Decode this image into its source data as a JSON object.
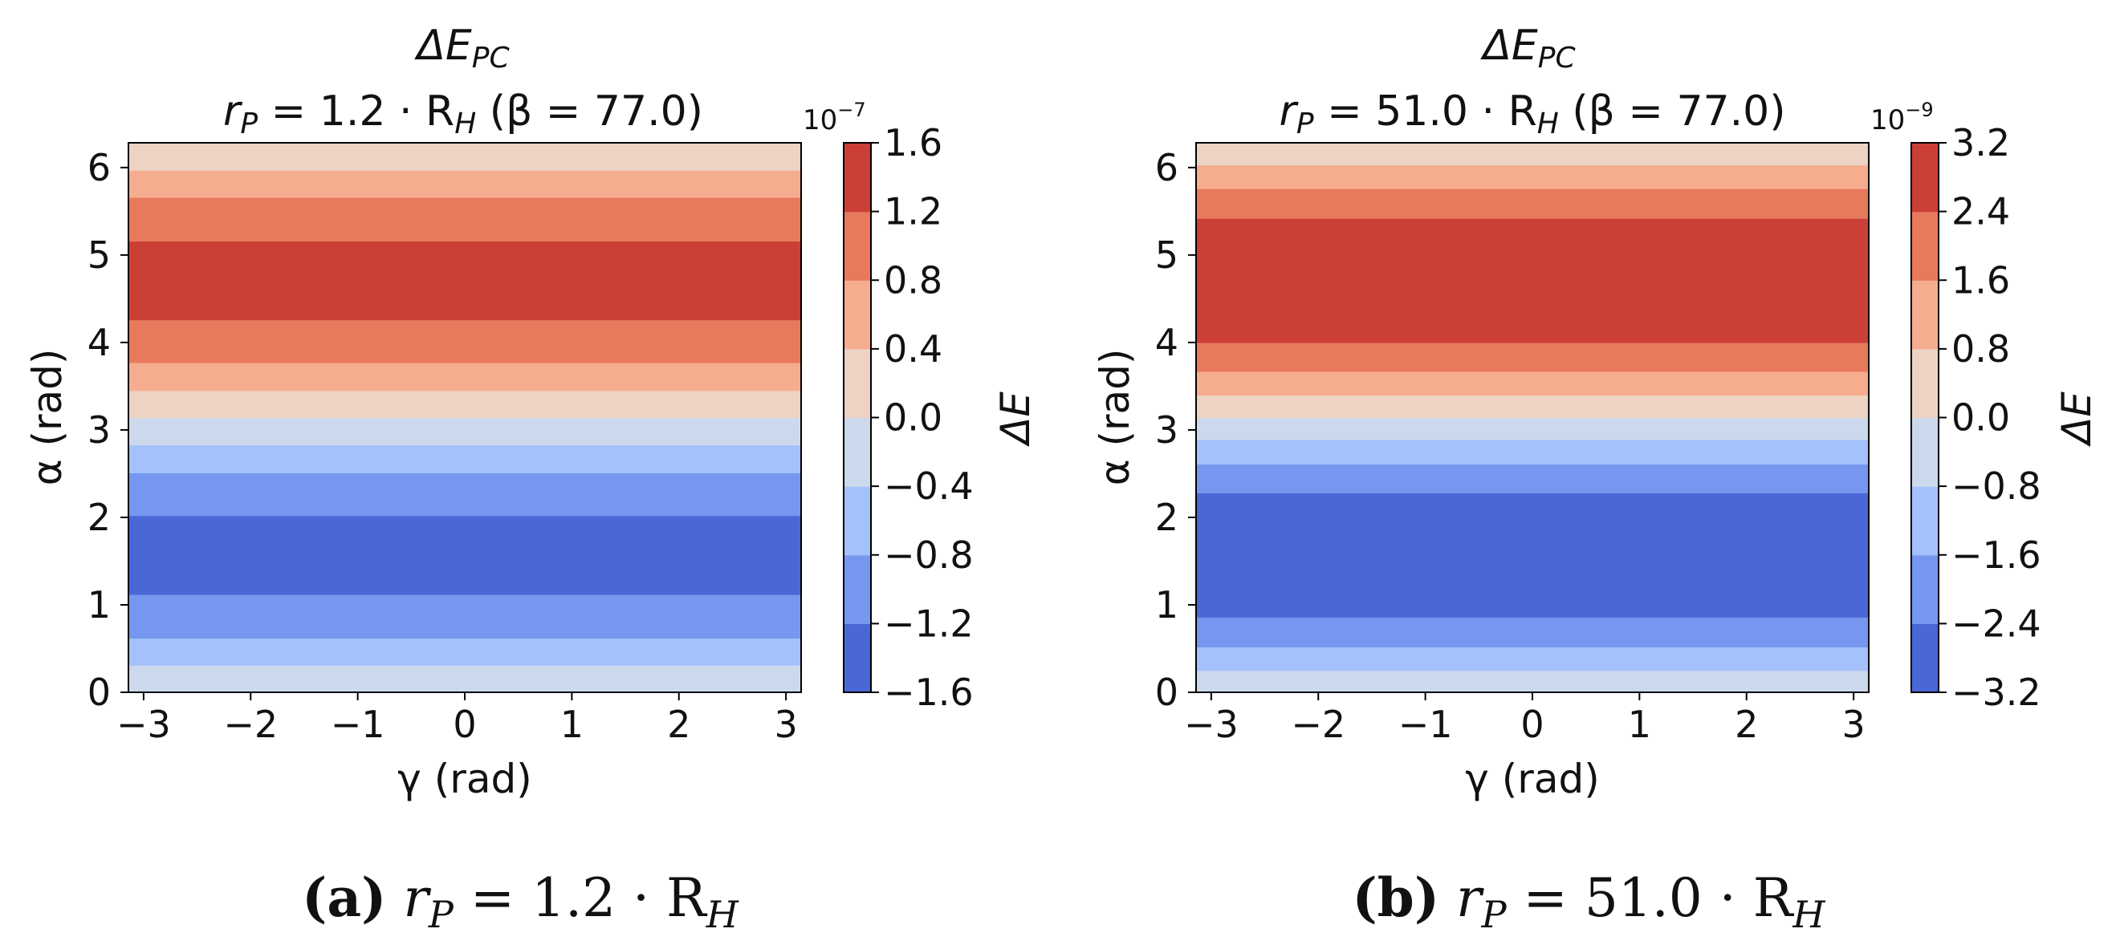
{
  "chart_data": [
    {
      "type": "contour",
      "panel_label": "(a)",
      "title_line1": "ΔE",
      "title_line1_sub": "PC",
      "title_line2": "r",
      "title_line2_sub": "P",
      "title_line2_rest": " = 1.2 · R",
      "title_line2_sub2": "H",
      "title_line2_tail": " (β = 77.0)",
      "xlabel": "γ (rad)",
      "ylabel": "α (rad)",
      "xlim": [
        -3.1416,
        3.1416
      ],
      "ylim": [
        0,
        6.2832
      ],
      "xticks": [
        "−3",
        "−2",
        "−1",
        "0",
        "1",
        "2",
        "3"
      ],
      "xtick_values": [
        -3,
        -2,
        -1,
        0,
        1,
        2,
        3
      ],
      "yticks": [
        "0",
        "1",
        "2",
        "3",
        "4",
        "5",
        "6"
      ],
      "ytick_values": [
        0,
        1,
        2,
        3,
        4,
        5,
        6
      ],
      "colorbar": {
        "label": "ΔE",
        "scale_text": "10",
        "scale_exp": "−7",
        "ticks": [
          "−1.6",
          "−1.2",
          "−0.8",
          "−0.4",
          "0.0",
          "0.4",
          "0.8",
          "1.2",
          "1.6"
        ],
        "colors": [
          "#4a67d6",
          "#7597f0",
          "#a4c1fb",
          "#ccd9ed",
          "#ecd3c4",
          "#f6ad8f",
          "#e8795d",
          "#cb3f37"
        ]
      },
      "bands": [
        {
          "y0": 0.0,
          "y1": 0.31,
          "level": 3
        },
        {
          "y0": 0.31,
          "y1": 0.62,
          "level": 2
        },
        {
          "y0": 0.62,
          "y1": 1.12,
          "level": 1
        },
        {
          "y0": 1.12,
          "y1": 2.02,
          "level": 0
        },
        {
          "y0": 2.02,
          "y1": 2.51,
          "level": 1
        },
        {
          "y0": 2.51,
          "y1": 2.83,
          "level": 2
        },
        {
          "y0": 2.83,
          "y1": 3.14,
          "level": 3
        },
        {
          "y0": 3.14,
          "y1": 3.45,
          "level": 4
        },
        {
          "y0": 3.45,
          "y1": 3.77,
          "level": 5
        },
        {
          "y0": 3.77,
          "y1": 4.26,
          "level": 6
        },
        {
          "y0": 4.26,
          "y1": 5.16,
          "level": 7
        },
        {
          "y0": 5.16,
          "y1": 5.66,
          "level": 6
        },
        {
          "y0": 5.66,
          "y1": 5.97,
          "level": 5
        },
        {
          "y0": 5.97,
          "y1": 6.2832,
          "level": 4
        }
      ],
      "caption_bold": "(a)",
      "caption_r": "r",
      "caption_r_sub": "P",
      "caption_eq": " = 1.2 · R",
      "caption_eq_sub": "H"
    },
    {
      "type": "contour",
      "panel_label": "(b)",
      "title_line1": "ΔE",
      "title_line1_sub": "PC",
      "title_line2": "r",
      "title_line2_sub": "P",
      "title_line2_rest": " = 51.0 · R",
      "title_line2_sub2": "H",
      "title_line2_tail": " (β = 77.0)",
      "xlabel": "γ (rad)",
      "ylabel": "α (rad)",
      "xlim": [
        -3.1416,
        3.1416
      ],
      "ylim": [
        0,
        6.2832
      ],
      "xticks": [
        "−3",
        "−2",
        "−1",
        "0",
        "1",
        "2",
        "3"
      ],
      "xtick_values": [
        -3,
        -2,
        -1,
        0,
        1,
        2,
        3
      ],
      "yticks": [
        "0",
        "1",
        "2",
        "3",
        "4",
        "5",
        "6"
      ],
      "ytick_values": [
        0,
        1,
        2,
        3,
        4,
        5,
        6
      ],
      "colorbar": {
        "label": "ΔE",
        "scale_text": "10",
        "scale_exp": "−9",
        "ticks": [
          "−3.2",
          "−2.4",
          "−1.6",
          "−0.8",
          "0.0",
          "0.8",
          "1.6",
          "2.4",
          "3.2"
        ],
        "colors": [
          "#4a67d6",
          "#7597f0",
          "#a4c1fb",
          "#ccd9ed",
          "#ecd3c4",
          "#f6ad8f",
          "#e8795d",
          "#cb3f37"
        ]
      },
      "bands": [
        {
          "y0": 0.0,
          "y1": 0.25,
          "level": 3
        },
        {
          "y0": 0.25,
          "y1": 0.52,
          "level": 2
        },
        {
          "y0": 0.52,
          "y1": 0.86,
          "level": 1
        },
        {
          "y0": 0.86,
          "y1": 2.28,
          "level": 0
        },
        {
          "y0": 2.28,
          "y1": 2.61,
          "level": 1
        },
        {
          "y0": 2.61,
          "y1": 2.89,
          "level": 2
        },
        {
          "y0": 2.89,
          "y1": 3.14,
          "level": 3
        },
        {
          "y0": 3.14,
          "y1": 3.4,
          "level": 4
        },
        {
          "y0": 3.4,
          "y1": 3.67,
          "level": 5
        },
        {
          "y0": 3.67,
          "y1": 4.0,
          "level": 6
        },
        {
          "y0": 4.0,
          "y1": 5.42,
          "level": 7
        },
        {
          "y0": 5.42,
          "y1": 5.76,
          "level": 6
        },
        {
          "y0": 5.76,
          "y1": 6.03,
          "level": 5
        },
        {
          "y0": 6.03,
          "y1": 6.2832,
          "level": 4
        }
      ],
      "caption_bold": "(b)",
      "caption_r": "r",
      "caption_r_sub": "P",
      "caption_eq": " = 51.0 · R",
      "caption_eq_sub": "H"
    }
  ]
}
